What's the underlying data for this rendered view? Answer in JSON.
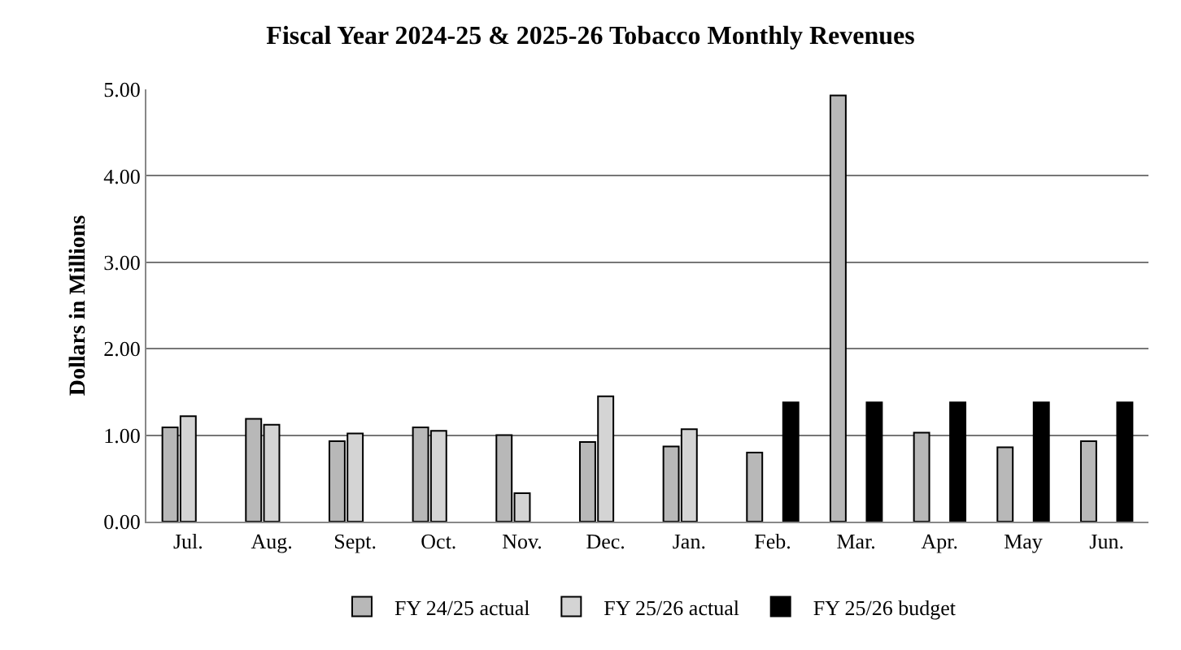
{
  "chart_data": {
    "type": "bar",
    "title": "Fiscal Year 2024-25 & 2025-26 Tobacco Monthly Revenues",
    "ylabel": "Dollars in Millions",
    "categories": [
      "Jul.",
      "Aug.",
      "Sept.",
      "Oct.",
      "Nov.",
      "Dec.",
      "Jan.",
      "Feb.",
      "Mar.",
      "Apr.",
      "May",
      "Jun."
    ],
    "series": [
      {
        "name": "FY 24/25 actual",
        "color": "#b8b8b8",
        "values": [
          1.09,
          1.19,
          0.93,
          1.09,
          1.0,
          0.92,
          0.87,
          0.8,
          4.93,
          1.03,
          0.86,
          0.93
        ]
      },
      {
        "name": "FY 25/26 actual",
        "color": "#d4d4d4",
        "values": [
          1.22,
          1.12,
          1.02,
          1.05,
          0.33,
          1.45,
          1.07,
          null,
          null,
          null,
          null,
          null
        ]
      },
      {
        "name": "FY 25/26 budget",
        "color": "#000000",
        "values": [
          null,
          null,
          null,
          null,
          null,
          null,
          null,
          1.38,
          1.38,
          1.38,
          1.38,
          1.38
        ]
      }
    ],
    "ylim": [
      0,
      5
    ],
    "yticks": [
      {
        "value": 0,
        "label": "0.00"
      },
      {
        "value": 1,
        "label": "1.00"
      },
      {
        "value": 2,
        "label": "2.00"
      },
      {
        "value": 3,
        "label": "3.00"
      },
      {
        "value": 4,
        "label": "4.00"
      },
      {
        "value": 5,
        "label": "5.00"
      }
    ],
    "grid": "y",
    "legend": "bottom"
  }
}
